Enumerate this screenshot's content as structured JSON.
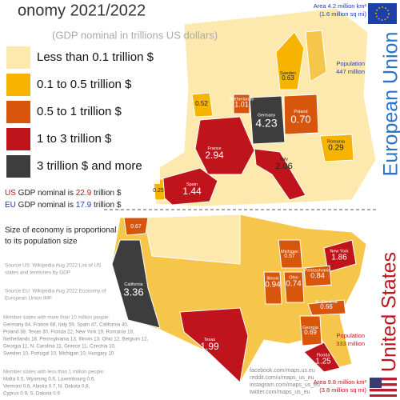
{
  "header": {
    "title": "onomy 2021/2022",
    "subtitle": "(GDP nominal in trillions US dollars)"
  },
  "legend": [
    "Less than 0.1 trillion $",
    "0.1 to 0.5 trillion $",
    "0.5 to 1 trillion $",
    "1 to 3 trillion $",
    "3 trillion $ and more"
  ],
  "totals": {
    "us": {
      "prefix": "US",
      "text": "GDP nominal is",
      "value": "22.9",
      "unit": "trillion $"
    },
    "eu": {
      "prefix": "EU",
      "text": "GDP nominal is",
      "value": "17.9",
      "unit": "trillion $"
    }
  },
  "note": [
    "Size of economy is proportional",
    "to its population size"
  ],
  "sources": [
    "Source US: Wikipedia Aug 2022 List of US",
    "states and territories by GDP",
    "Source EU: Wikipedia Aug 2022 Economy of",
    "European Union IMF"
  ],
  "members_large": [
    "Member states with more than 10 million people:",
    "Germany 84, France 68, Italy 59, Spain 47, California 40,",
    "Poland 38, Texas 30, Florida 22, New York 19, Romania 19,",
    "Netherlands 18, Pennsylvania 13, Illinois 13, Ohio 12, Belgium 12,",
    "Georgia 11, N. Carolina 11, Greece 11, Czechia 10,",
    "Sweden 10, Portugal 10, Michigan 10, Hungary 10"
  ],
  "members_small": [
    "Member states with less than 1 million people:",
    "Malta 0.5, Wyoming 0.6, Luxembourg 0.6,",
    "Vermont 0.6, Alaska 0.7, N. Dakota 0.8,",
    "Cyprus 0.9, S. Dakota 0.9"
  ],
  "eu": {
    "label": "European Union",
    "area": [
      "Area 4.2 million km²",
      "(1.6 million sq mi)"
    ],
    "population": [
      "Population",
      "447 million"
    ],
    "regions": [
      {
        "name": "Germany",
        "value": "4.23"
      },
      {
        "name": "France",
        "value": "2.94"
      },
      {
        "name": "Italy",
        "value": "2.06"
      },
      {
        "name": "Spain",
        "value": "1.44"
      },
      {
        "name": "Poland",
        "value": "0.70"
      },
      {
        "name": "Netherlands",
        "value": "1.01"
      },
      {
        "name": "Sweden",
        "value": "0.63"
      },
      {
        "name": "Romania",
        "value": "0.29"
      },
      {
        "value": "0.52"
      },
      {
        "value": "0.25"
      }
    ]
  },
  "us": {
    "label": "United States",
    "area": [
      "Area 9.8 million km²",
      "(3.8 million sq mi)"
    ],
    "population": [
      "Population",
      "333 million"
    ],
    "regions": [
      {
        "name": "California",
        "value": "3.36"
      },
      {
        "name": "Texas",
        "value": "1.99"
      },
      {
        "name": "New York",
        "value": "1.86"
      },
      {
        "name": "Florida",
        "value": "1.25"
      },
      {
        "name": "Illinois",
        "value": "0.94"
      },
      {
        "name": "Pennsylvania",
        "value": "0.84"
      },
      {
        "name": "Ohio",
        "value": "0.74"
      },
      {
        "name": "Georgia",
        "value": "0.69"
      },
      {
        "name": "N. Carolina",
        "value": "0.66"
      },
      {
        "name": "Michigan",
        "value": "0.57"
      },
      {
        "value": "0.67"
      }
    ]
  },
  "social": [
    "facebook.com/maps.us.eu",
    "reddit.com/u/maps_us_eu",
    "instagram.com/maps_us_eu",
    "twitter.com/maps_us_eu"
  ]
}
